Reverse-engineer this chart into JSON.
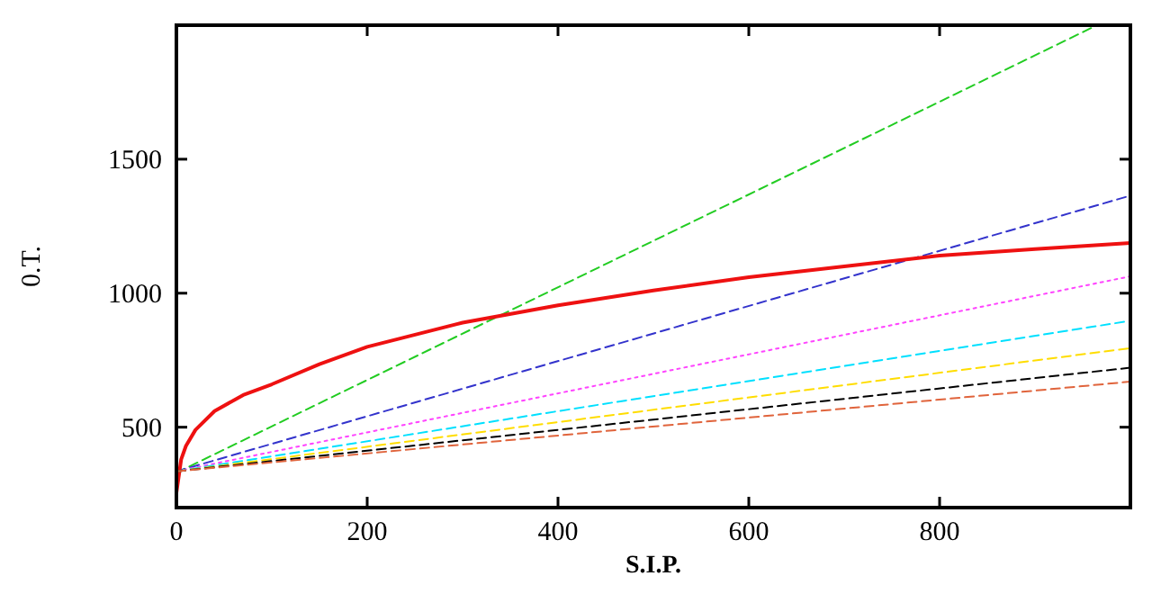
{
  "chart_data": {
    "type": "line",
    "xlabel": "S.I.P.",
    "ylabel": "0.T.",
    "xlim": [
      0,
      1000
    ],
    "ylim": [
      200,
      2000
    ],
    "xticks": [
      0,
      200,
      400,
      600,
      800
    ],
    "yticks": [
      500,
      1000,
      1500
    ],
    "grid": false,
    "marker": "none",
    "series": [
      {
        "color": "#22cc22",
        "line_style": "dashed",
        "x": [
          0,
          965
        ],
        "values": [
          330,
          2000
        ]
      },
      {
        "color": "#3333cc",
        "line_style": "dashed",
        "x": [
          0,
          1000
        ],
        "values": [
          335,
          1364
        ]
      },
      {
        "color": "#ee1111",
        "line_style": "solid",
        "x": [
          0,
          5,
          10,
          20,
          40,
          70,
          100,
          150,
          200,
          300,
          400,
          500,
          600,
          700,
          800,
          900,
          1000
        ],
        "values": [
          255,
          380,
          430,
          490,
          560,
          620,
          660,
          735,
          800,
          890,
          955,
          1010,
          1060,
          1100,
          1140,
          1165,
          1187
        ]
      },
      {
        "color": "#ff44ff",
        "line_style": "dotted",
        "x": [
          0,
          1000
        ],
        "values": [
          335,
          1063
        ]
      },
      {
        "color": "#00e0ff",
        "line_style": "dashed",
        "x": [
          0,
          1000
        ],
        "values": [
          335,
          897
        ]
      },
      {
        "color": "#ffdd00",
        "line_style": "dashed",
        "x": [
          0,
          1000
        ],
        "values": [
          335,
          795
        ]
      },
      {
        "color": "#000000",
        "line_style": "dashed",
        "x": [
          0,
          1000
        ],
        "values": [
          335,
          722
        ]
      },
      {
        "color": "#e0643c",
        "line_style": "dashed",
        "x": [
          0,
          1000
        ],
        "values": [
          335,
          670
        ]
      }
    ]
  }
}
